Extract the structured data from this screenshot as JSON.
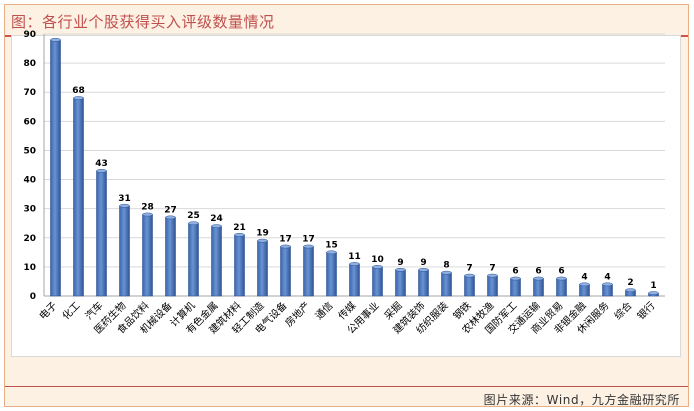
{
  "header": {
    "title": "图：各行业个股获得买入评级数量情况"
  },
  "footer": {
    "source": "图片来源：Wind，九方金融研究所"
  },
  "colors": {
    "bar": "#4f7cc0",
    "bar_dark": "#2f5597",
    "accent": "#c0504d",
    "grid": "#d9d9d9"
  },
  "chart_data": {
    "type": "bar",
    "title": "",
    "xlabel": "",
    "ylabel": "",
    "ylim": [
      0,
      90
    ],
    "yticks": [
      0,
      10,
      20,
      30,
      40,
      50,
      60,
      70,
      80,
      90
    ],
    "grid": true,
    "categories": [
      "电子",
      "化工",
      "汽车",
      "医药生物",
      "食品饮料",
      "机械设备",
      "计算机",
      "有色金属",
      "建筑材料",
      "轻工制造",
      "电气设备",
      "房地产",
      "通信",
      "传媒",
      "公用事业",
      "采掘",
      "建筑装饰",
      "纺织服装",
      "钢铁",
      "农林牧渔",
      "国防军工",
      "交通运输",
      "商业贸易",
      "非银金融",
      "休闲服务",
      "综合",
      "银行"
    ],
    "values": [
      88,
      68,
      43,
      31,
      28,
      27,
      25,
      24,
      21,
      19,
      17,
      17,
      15,
      11,
      10,
      9,
      9,
      8,
      7,
      7,
      6,
      6,
      6,
      4,
      4,
      2,
      1
    ],
    "data_labels": [
      "",
      "68",
      "43",
      "31",
      "28",
      "27",
      "25",
      "24",
      "21",
      "19",
      "17",
      "17",
      "15",
      "11",
      "10",
      "9",
      "9",
      "8",
      "7",
      "7",
      "6",
      "6",
      "6",
      "4",
      "4",
      "2",
      "1"
    ]
  }
}
